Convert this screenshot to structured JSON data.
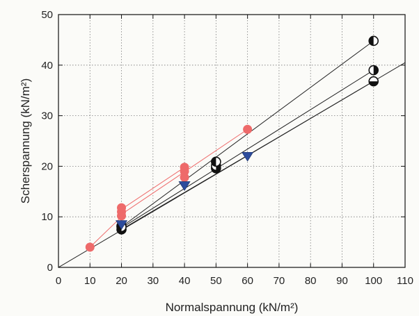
{
  "chart_data": {
    "type": "scatter",
    "title": "",
    "xlabel": "Normalspannung (kN/m²)",
    "ylabel": "Scherspannung (kN/m²)",
    "xlim": [
      0,
      110
    ],
    "ylim": [
      0,
      50
    ],
    "xticks": [
      0,
      10,
      20,
      30,
      40,
      50,
      60,
      70,
      80,
      90,
      100,
      110
    ],
    "yticks": [
      0,
      10,
      20,
      30,
      40,
      50
    ],
    "grid": true,
    "legend": "none",
    "series": [
      {
        "marker": "half-circle-bottom",
        "color": "#111111",
        "points": [
          [
            20,
            7.5
          ],
          [
            50,
            19.6
          ],
          [
            100,
            36.8
          ]
        ]
      },
      {
        "marker": "half-circle-right",
        "color": "#111111",
        "points": [
          [
            20,
            8.2
          ],
          [
            50,
            20.1
          ],
          [
            100,
            39.0
          ]
        ]
      },
      {
        "marker": "half-circle-left",
        "color": "#111111",
        "points": [
          [
            20,
            8.0
          ],
          [
            50,
            20.9
          ],
          [
            100,
            44.8
          ]
        ]
      },
      {
        "marker": "circle",
        "color": "#ee6a6a",
        "points": [
          [
            10,
            4.0
          ],
          [
            20,
            10.2
          ],
          [
            20,
            11.0
          ],
          [
            20,
            11.8
          ],
          [
            40,
            17.8
          ],
          [
            40,
            19.0
          ],
          [
            40,
            19.8
          ],
          [
            60,
            27.3
          ]
        ]
      },
      {
        "marker": "triangle-down",
        "color": "#2d4c9c",
        "points": [
          [
            20,
            8.5
          ],
          [
            40,
            16.2
          ],
          [
            60,
            22.0
          ]
        ]
      }
    ],
    "lines": [
      {
        "color": "#222222",
        "points": [
          [
            0,
            0
          ],
          [
            110,
            40.5
          ]
        ]
      },
      {
        "color": "#222222",
        "points": [
          [
            20,
            7.8
          ],
          [
            100,
            39.0
          ]
        ]
      },
      {
        "color": "#222222",
        "points": [
          [
            20,
            8.0
          ],
          [
            100,
            44.8
          ]
        ]
      },
      {
        "color": "#222222",
        "points": [
          [
            20,
            7.5
          ],
          [
            100,
            36.8
          ]
        ]
      },
      {
        "color": "#ee6a6a",
        "points": [
          [
            10,
            4.0
          ],
          [
            20,
            10.0
          ]
        ]
      },
      {
        "color": "#ee6a6a",
        "points": [
          [
            20,
            11.5
          ],
          [
            40,
            19.8
          ]
        ]
      },
      {
        "color": "#ee6a6a",
        "points": [
          [
            20,
            10.5
          ],
          [
            60,
            27.3
          ]
        ]
      }
    ]
  }
}
